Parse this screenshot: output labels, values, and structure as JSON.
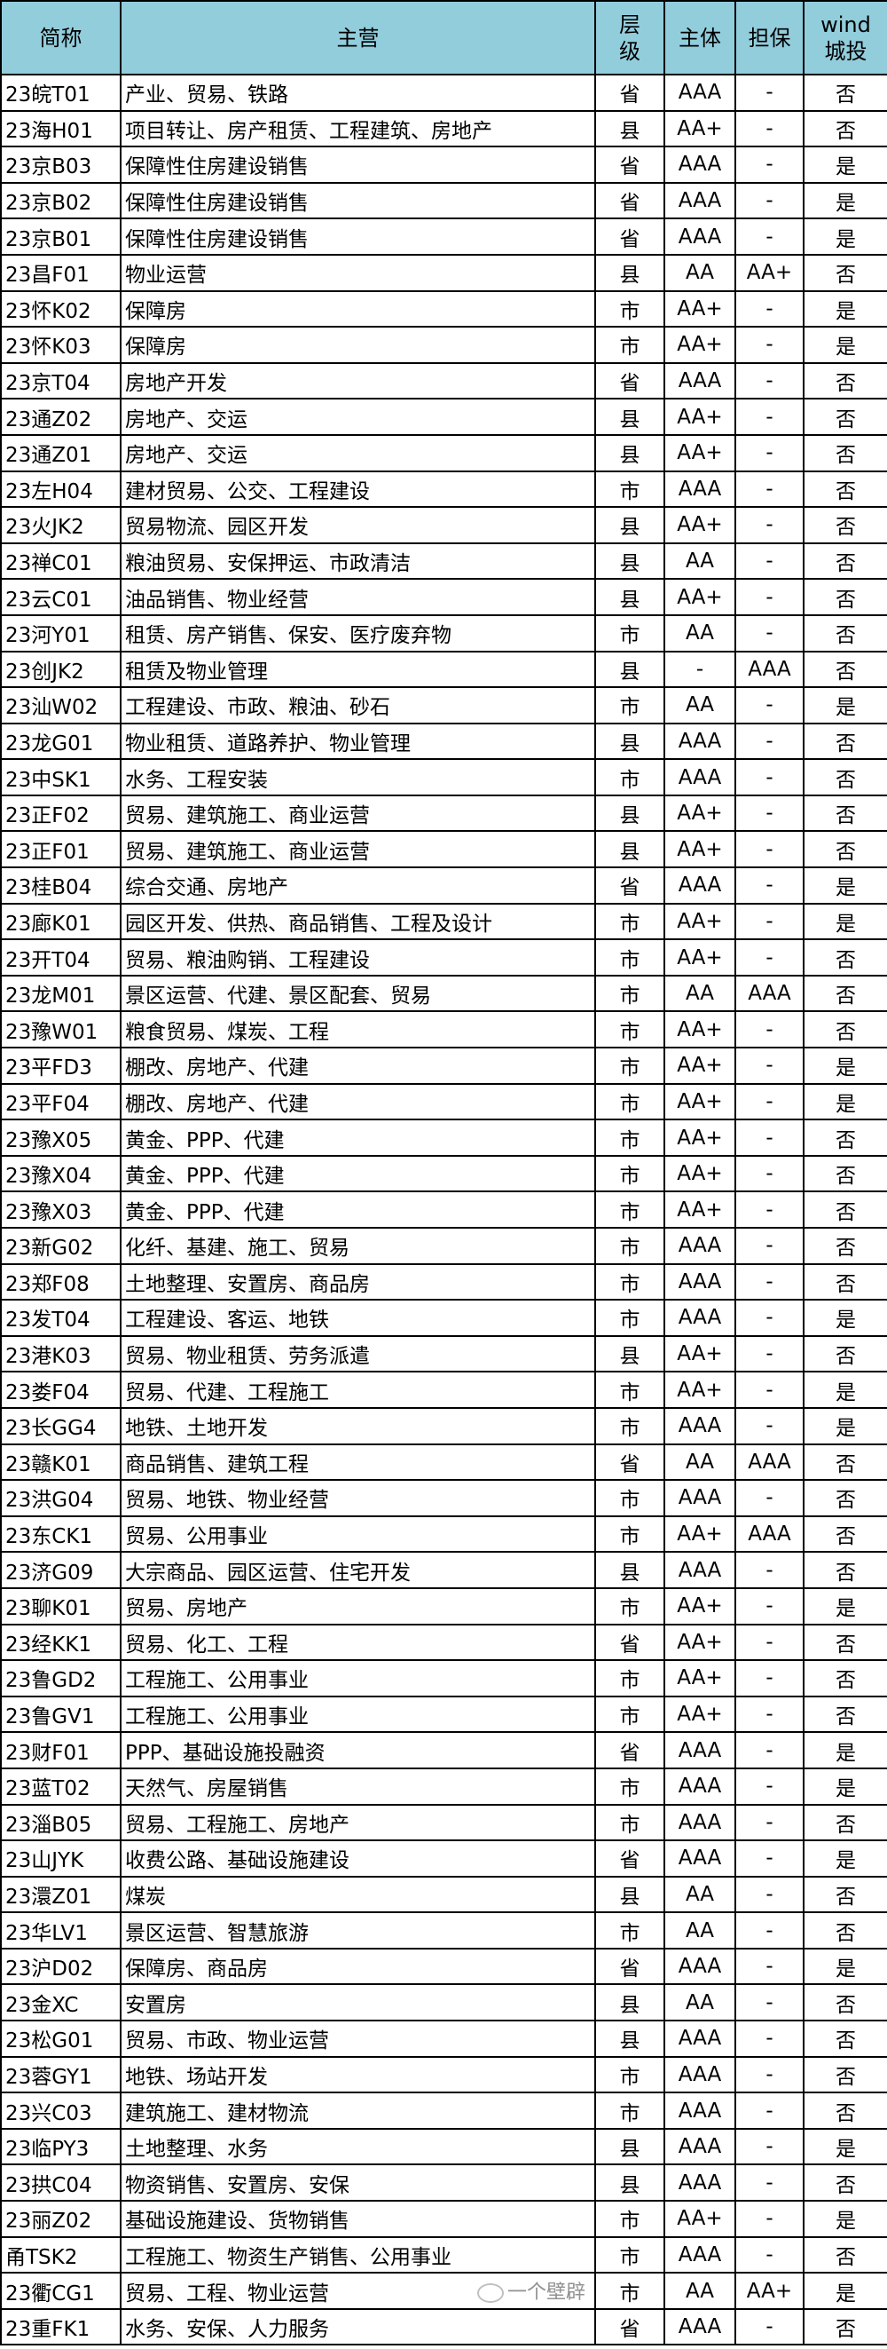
{
  "header": {
    "name": "简称",
    "business": "主营",
    "level_line1": "层",
    "level_line2": "级",
    "rating": "主体",
    "guarantee": "担保",
    "wind_line1": "wind",
    "wind_line2": "城投"
  },
  "colors": {
    "header_bg": "#92cddc",
    "border": "#000000"
  },
  "rows": [
    [
      "23皖T01",
      "产业、贸易、铁路",
      "省",
      "AAA",
      "-",
      "否"
    ],
    [
      "23海H01",
      "项目转让、房产租赁、工程建筑、房地产",
      "县",
      "AA+",
      "-",
      "否"
    ],
    [
      "23京B03",
      "保障性住房建设销售",
      "省",
      "AAA",
      "-",
      "是"
    ],
    [
      "23京B02",
      "保障性住房建设销售",
      "省",
      "AAA",
      "-",
      "是"
    ],
    [
      "23京B01",
      "保障性住房建设销售",
      "省",
      "AAA",
      "-",
      "是"
    ],
    [
      "23昌F01",
      "物业运营",
      "县",
      "AA",
      "AA+",
      "否"
    ],
    [
      "23怀K02",
      "保障房",
      "市",
      "AA+",
      "-",
      "是"
    ],
    [
      "23怀K03",
      "保障房",
      "市",
      "AA+",
      "-",
      "是"
    ],
    [
      "23京T04",
      "房地产开发",
      "省",
      "AAA",
      "-",
      "否"
    ],
    [
      "23通Z02",
      "房地产、交运",
      "县",
      "AA+",
      "-",
      "否"
    ],
    [
      "23通Z01",
      "房地产、交运",
      "县",
      "AA+",
      "-",
      "否"
    ],
    [
      "23左H04",
      "建材贸易、公交、工程建设",
      "市",
      "AAA",
      "-",
      "否"
    ],
    [
      "23火JK2",
      "贸易物流、园区开发",
      "县",
      "AA+",
      "-",
      "否"
    ],
    [
      "23禅C01",
      "粮油贸易、安保押运、市政清洁",
      "县",
      "AA",
      "-",
      "否"
    ],
    [
      "23云C01",
      "油品销售、物业经营",
      "县",
      "AA+",
      "-",
      "否"
    ],
    [
      "23河Y01",
      "租赁、房产销售、保安、医疗废弃物",
      "市",
      "AA",
      "-",
      "否"
    ],
    [
      "23创JK2",
      "租赁及物业管理",
      "县",
      "-",
      "AAA",
      "否"
    ],
    [
      "23汕W02",
      "工程建设、市政、粮油、砂石",
      "市",
      "AA",
      "-",
      "是"
    ],
    [
      "23龙G01",
      "物业租赁、道路养护、物业管理",
      "县",
      "AAA",
      "-",
      "否"
    ],
    [
      "23中SK1",
      "水务、工程安装",
      "市",
      "AAA",
      "-",
      "否"
    ],
    [
      "23正F02",
      "贸易、建筑施工、商业运营",
      "县",
      "AA+",
      "-",
      "否"
    ],
    [
      "23正F01",
      "贸易、建筑施工、商业运营",
      "县",
      "AA+",
      "-",
      "否"
    ],
    [
      "23桂B04",
      "综合交通、房地产",
      "省",
      "AAA",
      "-",
      "是"
    ],
    [
      "23廊K01",
      "园区开发、供热、商品销售、工程及设计",
      "市",
      "AA+",
      "-",
      "是"
    ],
    [
      "23开T04",
      "贸易、粮油购销、工程建设",
      "市",
      "AA+",
      "-",
      "否"
    ],
    [
      "23龙M01",
      "景区运营、代建、景区配套、贸易",
      "市",
      "AA",
      "AAA",
      "否"
    ],
    [
      "23豫W01",
      "粮食贸易、煤炭、工程",
      "市",
      "AA+",
      "-",
      "否"
    ],
    [
      "23平FD3",
      "棚改、房地产、代建",
      "市",
      "AA+",
      "-",
      "是"
    ],
    [
      "23平F04",
      "棚改、房地产、代建",
      "市",
      "AA+",
      "-",
      "是"
    ],
    [
      "23豫X05",
      "黄金、PPP、代建",
      "市",
      "AA+",
      "-",
      "否"
    ],
    [
      "23豫X04",
      "黄金、PPP、代建",
      "市",
      "AA+",
      "-",
      "否"
    ],
    [
      "23豫X03",
      "黄金、PPP、代建",
      "市",
      "AA+",
      "-",
      "否"
    ],
    [
      "23新G02",
      "化纤、基建、施工、贸易",
      "市",
      "AAA",
      "-",
      "否"
    ],
    [
      "23郑F08",
      "土地整理、安置房、商品房",
      "市",
      "AAA",
      "-",
      "否"
    ],
    [
      "23发T04",
      "工程建设、客运、地铁",
      "市",
      "AAA",
      "-",
      "是"
    ],
    [
      "23港K03",
      "贸易、物业租赁、劳务派遣",
      "县",
      "AA+",
      "-",
      "否"
    ],
    [
      "23娄F04",
      "贸易、代建、工程施工",
      "市",
      "AA+",
      "-",
      "是"
    ],
    [
      "23长GG4",
      "地铁、土地开发",
      "市",
      "AAA",
      "-",
      "是"
    ],
    [
      "23赣K01",
      "商品销售、建筑工程",
      "省",
      "AA",
      "AAA",
      "否"
    ],
    [
      "23洪G04",
      "贸易、地铁、物业经营",
      "市",
      "AAA",
      "-",
      "否"
    ],
    [
      "23东CK1",
      "贸易、公用事业",
      "市",
      "AA+",
      "AAA",
      "否"
    ],
    [
      "23济G09",
      "大宗商品、园区运营、住宅开发",
      "县",
      "AAA",
      "-",
      "否"
    ],
    [
      "23聊K01",
      "贸易、房地产",
      "市",
      "AA+",
      "-",
      "是"
    ],
    [
      "23经KK1",
      "贸易、化工、工程",
      "省",
      "AA+",
      "-",
      "否"
    ],
    [
      "23鲁GD2",
      "工程施工、公用事业",
      "市",
      "AA+",
      "-",
      "否"
    ],
    [
      "23鲁GV1",
      "工程施工、公用事业",
      "市",
      "AA+",
      "-",
      "否"
    ],
    [
      "23财F01",
      "PPP、基础设施投融资",
      "省",
      "AAA",
      "-",
      "是"
    ],
    [
      "23蓝T02",
      "天然气、房屋销售",
      "市",
      "AAA",
      "-",
      "是"
    ],
    [
      "23淄B05",
      "贸易、工程施工、房地产",
      "市",
      "AAA",
      "-",
      "否"
    ],
    [
      "23山JYK",
      "收费公路、基础设施建设",
      "省",
      "AAA",
      "-",
      "是"
    ],
    [
      "23澴Z01",
      "煤炭",
      "县",
      "AA",
      "-",
      "否"
    ],
    [
      "23华LV1",
      "景区运营、智慧旅游",
      "市",
      "AA",
      "-",
      "否"
    ],
    [
      "23沪D02",
      "保障房、商品房",
      "省",
      "AAA",
      "-",
      "是"
    ],
    [
      "23金XC",
      "安置房",
      "县",
      "AA",
      "-",
      "否"
    ],
    [
      "23松G01",
      "贸易、市政、物业运营",
      "县",
      "AAA",
      "-",
      "否"
    ],
    [
      "23蓉GY1",
      "地铁、场站开发",
      "市",
      "AAA",
      "-",
      "否"
    ],
    [
      "23兴C03",
      "建筑施工、建材物流",
      "市",
      "AAA",
      "-",
      "否"
    ],
    [
      "23临PY3",
      "土地整理、水务",
      "县",
      "AAA",
      "-",
      "是"
    ],
    [
      "23拱C04",
      "物资销售、安置房、安保",
      "县",
      "AAA",
      "-",
      "否"
    ],
    [
      "23丽Z02",
      "基础设施建设、货物销售",
      "市",
      "AA+",
      "-",
      "是"
    ],
    [
      "甬TSK2",
      "工程施工、物资生产销售、公用事业",
      "市",
      "AAA",
      "-",
      "否"
    ],
    [
      "23衢CG1",
      "贸易、工程、物业运营",
      "市",
      "AA",
      "AA+",
      "是"
    ],
    [
      "23重FK1",
      "水务、安保、人力服务",
      "省",
      "AAA",
      "-",
      "否"
    ]
  ],
  "watermark": "一个壁辟"
}
